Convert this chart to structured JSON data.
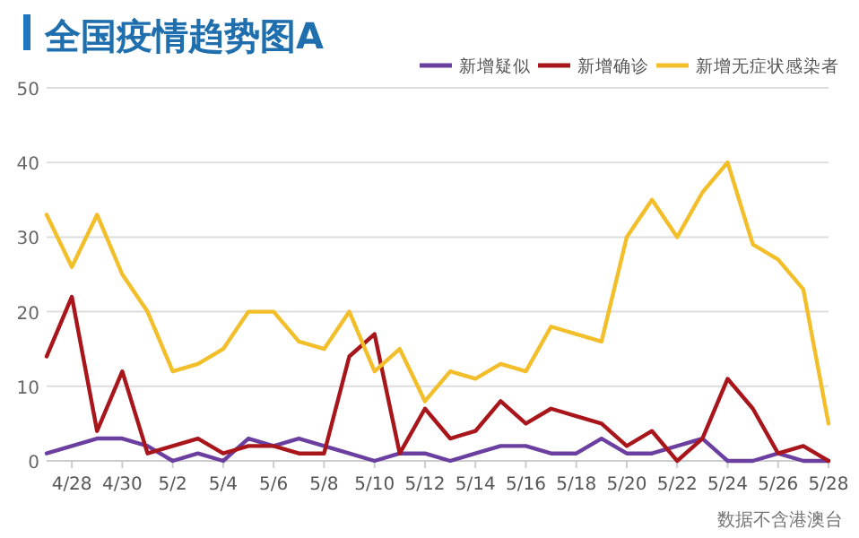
{
  "chart_data": {
    "type": "line",
    "title": "全国疫情趋势图A",
    "x": [
      "--04-27",
      "--04-28",
      "--04-29",
      "--04-30",
      "--05-01",
      "--05-02",
      "--05-03",
      "--05-04",
      "--05-05",
      "--05-06",
      "--05-07",
      "--05-08",
      "--05-09",
      "--05-10",
      "--05-11",
      "--05-12",
      "--05-13",
      "--05-14",
      "--05-15",
      "--05-16",
      "--05-17",
      "--05-18",
      "--05-19",
      "--05-20",
      "--05-21",
      "--05-22",
      "--05-23",
      "--05-24",
      "--05-25",
      "--05-26",
      "--05-27",
      "--05-28"
    ],
    "series": [
      {
        "name": "新增疑似",
        "color": "#6b3fa0",
        "values": [
          1,
          2,
          3,
          3,
          2,
          0,
          1,
          0,
          3,
          2,
          3,
          2,
          1,
          0,
          1,
          1,
          0,
          1,
          2,
          2,
          1,
          1,
          3,
          1,
          1,
          2,
          3,
          0,
          0,
          1,
          0,
          0
        ]
      },
      {
        "name": "新增确诊",
        "color": "#a8151b",
        "values": [
          14,
          22,
          4,
          12,
          1,
          2,
          3,
          1,
          2,
          2,
          1,
          1,
          14,
          17,
          1,
          7,
          3,
          4,
          8,
          5,
          7,
          6,
          5,
          2,
          4,
          0,
          3,
          11,
          7,
          1,
          2,
          0
        ]
      },
      {
        "name": "新增无症状感染者",
        "color": "#f2be2a",
        "values": [
          33,
          26,
          33,
          25,
          20,
          12,
          13,
          15,
          20,
          20,
          16,
          15,
          20,
          12,
          15,
          8,
          12,
          11,
          13,
          12,
          18,
          17,
          16,
          30,
          35,
          30,
          36,
          40,
          29,
          27,
          23,
          5
        ]
      }
    ],
    "xlim": [
      "--04-27",
      "--05-28"
    ],
    "xticks": [
      {
        "value": "--04-28",
        "label": "4/28"
      },
      {
        "value": "--04-30",
        "label": "4/30"
      },
      {
        "value": "--05-02",
        "label": "5/2"
      },
      {
        "value": "--05-04",
        "label": "5/4"
      },
      {
        "value": "--05-06",
        "label": "5/6"
      },
      {
        "value": "--05-08",
        "label": "5/8"
      },
      {
        "value": "--05-10",
        "label": "5/10"
      },
      {
        "value": "--05-12",
        "label": "5/12"
      },
      {
        "value": "--05-14",
        "label": "5/14"
      },
      {
        "value": "--05-16",
        "label": "5/16"
      },
      {
        "value": "--05-18",
        "label": "5/18"
      },
      {
        "value": "--05-20",
        "label": "5/20"
      },
      {
        "value": "--05-22",
        "label": "5/22"
      },
      {
        "value": "--05-24",
        "label": "5/24"
      },
      {
        "value": "--05-26",
        "label": "5/26"
      },
      {
        "value": "--05-28",
        "label": "5/28"
      }
    ],
    "ylim": [
      0,
      50
    ],
    "yticks": [
      0,
      10,
      20,
      30,
      40,
      50
    ],
    "grid": "y",
    "legend": "top right",
    "marker": "none",
    "line_style": "solid",
    "annotations": [
      "数据不含港澳台"
    ]
  }
}
